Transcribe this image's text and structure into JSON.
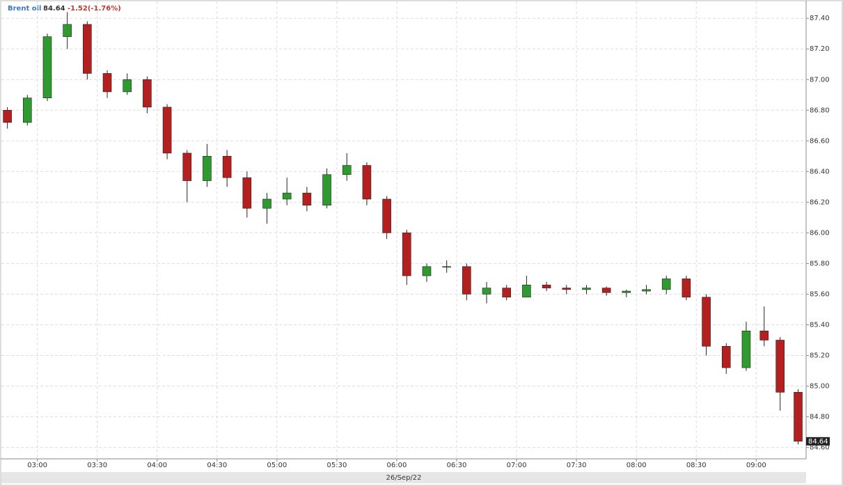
{
  "chart_data": {
    "type": "candlestick",
    "name": "Brent oil",
    "price": "84.64",
    "change": "-1.52(-1.76%)",
    "date": "26/Sep/22",
    "up_color": "#2f9a2f",
    "down_color": "#b3201f",
    "grid": true,
    "x": [
      "02:45",
      "02:55",
      "03:05",
      "03:15",
      "03:25",
      "03:35",
      "03:45",
      "03:55",
      "04:05",
      "04:15",
      "04:25",
      "04:35",
      "04:45",
      "04:55",
      "05:05",
      "05:15",
      "05:25",
      "05:35",
      "05:45",
      "05:55",
      "06:05",
      "06:15",
      "06:25",
      "06:35",
      "06:45",
      "06:55",
      "07:05",
      "07:15",
      "07:25",
      "07:35",
      "07:45",
      "07:55",
      "08:05",
      "08:15",
      "08:25",
      "08:35",
      "08:45",
      "08:55",
      "09:04",
      "09:12",
      "09:21"
    ],
    "open": [
      86.8,
      86.72,
      86.88,
      87.28,
      87.36,
      87.04,
      86.92,
      87.0,
      86.82,
      86.52,
      86.34,
      86.5,
      86.36,
      86.16,
      86.22,
      86.26,
      86.18,
      86.38,
      86.44,
      86.22,
      86.0,
      85.72,
      85.78,
      85.78,
      85.6,
      85.64,
      85.58,
      85.66,
      85.64,
      85.63,
      85.64,
      85.61,
      85.62,
      85.63,
      85.7,
      85.58,
      85.26,
      85.12,
      85.36,
      85.3,
      84.96
    ],
    "high": [
      86.82,
      86.9,
      87.3,
      87.44,
      87.38,
      87.06,
      87.04,
      87.02,
      86.84,
      86.54,
      86.58,
      86.54,
      86.4,
      86.26,
      86.36,
      86.3,
      86.42,
      86.52,
      86.46,
      86.24,
      86.02,
      85.8,
      85.82,
      85.8,
      85.68,
      85.66,
      85.72,
      85.68,
      85.66,
      85.66,
      85.65,
      85.63,
      85.66,
      85.72,
      85.72,
      85.6,
      85.28,
      85.42,
      85.52,
      85.32,
      84.98
    ],
    "low": [
      86.68,
      86.7,
      86.86,
      87.2,
      87.0,
      86.88,
      86.9,
      86.78,
      86.48,
      86.2,
      86.3,
      86.3,
      86.1,
      86.06,
      86.18,
      86.14,
      86.16,
      86.34,
      86.18,
      85.96,
      85.66,
      85.68,
      85.74,
      85.56,
      85.54,
      85.56,
      85.58,
      85.62,
      85.6,
      85.6,
      85.59,
      85.58,
      85.6,
      85.6,
      85.56,
      85.2,
      85.08,
      85.1,
      85.26,
      84.84,
      84.62
    ],
    "close": [
      86.72,
      86.88,
      87.28,
      87.36,
      87.04,
      86.92,
      87.0,
      86.82,
      86.52,
      86.34,
      86.5,
      86.36,
      86.16,
      86.22,
      86.26,
      86.18,
      86.38,
      86.44,
      86.22,
      86.0,
      85.72,
      85.78,
      85.78,
      85.6,
      85.64,
      85.58,
      85.66,
      85.64,
      85.63,
      85.64,
      85.61,
      85.62,
      85.63,
      85.7,
      85.58,
      85.26,
      85.12,
      85.36,
      85.3,
      84.96,
      84.64
    ],
    "xlim": [
      "02:42",
      "09:25"
    ],
    "xticks": [
      "03:00",
      "03:30",
      "04:00",
      "04:30",
      "05:00",
      "05:30",
      "06:00",
      "06:30",
      "07:00",
      "07:30",
      "08:00",
      "08:30",
      "09:00"
    ],
    "ylim": [
      84.53,
      87.51
    ],
    "yticks": [
      {
        "value": 84.6,
        "label": "84.60"
      },
      {
        "value": 84.8,
        "label": "84.80"
      },
      {
        "value": 85,
        "label": "85.00"
      },
      {
        "value": 85.2,
        "label": "85.20"
      },
      {
        "value": 85.4,
        "label": "85.40"
      },
      {
        "value": 85.6,
        "label": "85.60"
      },
      {
        "value": 85.8,
        "label": "85.80"
      },
      {
        "value": 86,
        "label": "86.00"
      },
      {
        "value": 86.2,
        "label": "86.20"
      },
      {
        "value": 86.4,
        "label": "86.40"
      },
      {
        "value": 86.6,
        "label": "86.60"
      },
      {
        "value": 86.8,
        "label": "86.80"
      },
      {
        "value": 87,
        "label": "87.00"
      },
      {
        "value": 87.2,
        "label": "87.20"
      },
      {
        "value": 87.4,
        "label": "87.40"
      }
    ]
  }
}
